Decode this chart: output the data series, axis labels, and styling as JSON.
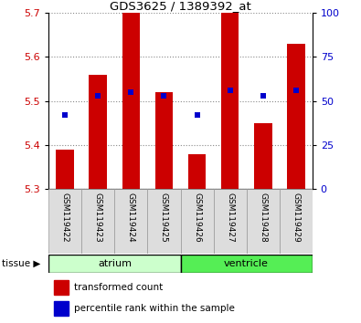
{
  "title": "GDS3625 / 1389392_at",
  "samples": [
    "GSM119422",
    "GSM119423",
    "GSM119424",
    "GSM119425",
    "GSM119426",
    "GSM119427",
    "GSM119428",
    "GSM119429"
  ],
  "transformed_count": [
    5.39,
    5.56,
    5.7,
    5.52,
    5.38,
    5.7,
    5.45,
    5.63
  ],
  "percentile_rank": [
    42,
    53,
    55,
    53,
    42,
    56,
    53,
    56
  ],
  "baseline": 5.3,
  "ylim_left": [
    5.3,
    5.7
  ],
  "ylim_right": [
    0,
    100
  ],
  "yticks_left": [
    5.3,
    5.4,
    5.5,
    5.6,
    5.7
  ],
  "yticks_right": [
    0,
    25,
    50,
    75,
    100
  ],
  "bar_color": "#cc0000",
  "dot_color": "#0000cc",
  "tissue_groups": [
    {
      "label": "atrium",
      "indices": [
        0,
        1,
        2,
        3
      ],
      "color_light": "#ccffcc",
      "color_dark": "#66dd66"
    },
    {
      "label": "ventricle",
      "indices": [
        4,
        5,
        6,
        7
      ],
      "color_light": "#55ee55",
      "color_dark": "#55ee55"
    }
  ],
  "grid_color": "#888888",
  "tick_label_color_left": "#cc0000",
  "tick_label_color_right": "#0000cc",
  "legend_items": [
    {
      "label": "transformed count",
      "color": "#cc0000"
    },
    {
      "label": "percentile rank within the sample",
      "color": "#0000cc"
    }
  ],
  "atrium_color": "#ccffcc",
  "ventricle_color": "#55ee55"
}
